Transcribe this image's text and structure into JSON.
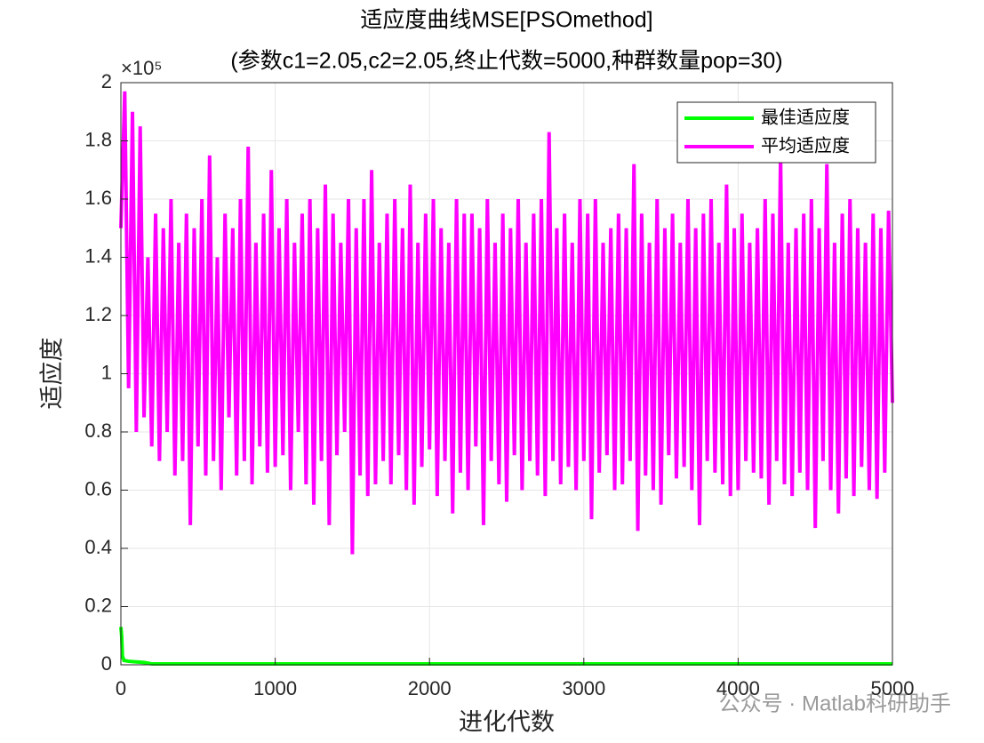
{
  "chart_data": {
    "type": "line",
    "title": "适应度曲线MSE[PSOmethod]",
    "subtitle": "(参数c1=2.05,c2=2.05,终止代数=5000,种群数量pop=30)",
    "xlabel": "进化代数",
    "ylabel": "适应度",
    "y_multiplier": "×10⁵",
    "xlim": [
      0,
      5000
    ],
    "xticks": [
      0,
      1000,
      2000,
      3000,
      4000,
      5000
    ],
    "ylim": [
      0,
      2
    ],
    "yticks": [
      0,
      0.2,
      0.4,
      0.6,
      0.8,
      1,
      1.2,
      1.4,
      1.6,
      1.8,
      2
    ],
    "grid": true,
    "legend_position": "upper-right",
    "series": [
      {
        "name": "最佳适应度",
        "color": "#00ff00",
        "x": [
          0,
          5,
          10,
          20,
          50,
          100,
          150,
          180,
          200,
          1000,
          5000
        ],
        "values": [
          0.13,
          0.1,
          0.03,
          0.015,
          0.012,
          0.01,
          0.008,
          0.005,
          0.003,
          0.003,
          0.003
        ]
      },
      {
        "name": "平均适应度",
        "color": "#ff00ff",
        "x": [
          0,
          25,
          50,
          75,
          100,
          125,
          150,
          175,
          200,
          225,
          250,
          275,
          300,
          325,
          350,
          375,
          400,
          425,
          450,
          475,
          500,
          525,
          550,
          575,
          600,
          625,
          650,
          675,
          700,
          725,
          750,
          775,
          800,
          825,
          850,
          875,
          900,
          925,
          950,
          975,
          1000,
          1025,
          1050,
          1075,
          1100,
          1125,
          1150,
          1175,
          1200,
          1225,
          1250,
          1275,
          1300,
          1325,
          1350,
          1375,
          1400,
          1425,
          1450,
          1475,
          1500,
          1525,
          1550,
          1575,
          1600,
          1625,
          1650,
          1675,
          1700,
          1725,
          1750,
          1775,
          1800,
          1825,
          1850,
          1875,
          1900,
          1925,
          1950,
          1975,
          2000,
          2025,
          2050,
          2075,
          2100,
          2125,
          2150,
          2175,
          2200,
          2225,
          2250,
          2275,
          2300,
          2325,
          2350,
          2375,
          2400,
          2425,
          2450,
          2475,
          2500,
          2525,
          2550,
          2575,
          2600,
          2625,
          2650,
          2675,
          2700,
          2725,
          2750,
          2775,
          2800,
          2825,
          2850,
          2875,
          2900,
          2925,
          2950,
          2975,
          3000,
          3025,
          3050,
          3075,
          3100,
          3125,
          3150,
          3175,
          3200,
          3225,
          3250,
          3275,
          3300,
          3325,
          3350,
          3375,
          3400,
          3425,
          3450,
          3475,
          3500,
          3525,
          3550,
          3575,
          3600,
          3625,
          3650,
          3675,
          3700,
          3725,
          3750,
          3775,
          3800,
          3825,
          3850,
          3875,
          3900,
          3925,
          3950,
          3975,
          4000,
          4025,
          4050,
          4075,
          4100,
          4125,
          4150,
          4175,
          4200,
          4225,
          4250,
          4275,
          4300,
          4325,
          4350,
          4375,
          4400,
          4425,
          4450,
          4475,
          4500,
          4525,
          4550,
          4575,
          4600,
          4625,
          4650,
          4675,
          4700,
          4725,
          4750,
          4775,
          4800,
          4825,
          4850,
          4875,
          4900,
          4925,
          4950,
          4975,
          5000
        ],
        "values": [
          1.5,
          1.97,
          0.95,
          1.9,
          0.8,
          1.85,
          0.85,
          1.4,
          0.75,
          1.55,
          0.7,
          1.5,
          0.8,
          1.6,
          0.65,
          1.45,
          0.7,
          1.55,
          0.48,
          1.5,
          0.75,
          1.6,
          0.65,
          1.75,
          0.7,
          1.4,
          0.6,
          1.55,
          0.85,
          1.5,
          0.65,
          1.6,
          0.7,
          1.78,
          0.62,
          1.45,
          0.75,
          1.55,
          0.66,
          1.7,
          0.68,
          1.5,
          0.72,
          1.6,
          0.6,
          1.45,
          0.8,
          1.55,
          0.62,
          1.6,
          0.55,
          1.5,
          0.7,
          1.65,
          0.48,
          1.55,
          0.72,
          1.45,
          0.8,
          1.6,
          0.38,
          1.5,
          0.65,
          1.6,
          0.58,
          1.7,
          0.62,
          1.45,
          0.7,
          1.55,
          0.62,
          1.6,
          0.72,
          1.5,
          0.6,
          1.65,
          0.55,
          1.45,
          0.68,
          1.55,
          0.74,
          1.6,
          0.58,
          1.5,
          0.7,
          1.45,
          0.52,
          1.6,
          0.66,
          1.55,
          0.6,
          1.55,
          0.75,
          1.5,
          0.48,
          1.6,
          0.7,
          1.45,
          0.62,
          1.55,
          0.56,
          1.5,
          0.72,
          1.6,
          0.6,
          1.45,
          0.7,
          1.55,
          0.65,
          1.6,
          0.58,
          1.83,
          0.7,
          1.5,
          0.62,
          1.55,
          0.68,
          1.45,
          0.6,
          1.6,
          0.7,
          1.55,
          0.5,
          1.6,
          0.66,
          1.45,
          0.72,
          1.5,
          0.6,
          1.55,
          0.62,
          1.5,
          0.7,
          1.72,
          0.46,
          1.55,
          0.65,
          1.45,
          0.6,
          1.6,
          0.55,
          1.5,
          0.72,
          1.55,
          0.64,
          1.45,
          0.68,
          1.6,
          0.6,
          1.5,
          0.48,
          1.55,
          0.7,
          1.6,
          0.66,
          1.45,
          0.62,
          1.65,
          0.58,
          1.5,
          0.6,
          1.55,
          0.7,
          1.45,
          0.66,
          1.5,
          0.64,
          1.6,
          0.55,
          1.55,
          0.7,
          1.75,
          0.62,
          1.45,
          0.58,
          1.5,
          0.66,
          1.55,
          0.6,
          1.6,
          0.47,
          1.5,
          0.7,
          1.72,
          0.6,
          1.45,
          0.52,
          1.55,
          0.64,
          1.6,
          0.58,
          1.5,
          0.68,
          1.45,
          0.6,
          1.55,
          0.57,
          1.5,
          0.66,
          1.56,
          0.9
        ]
      }
    ],
    "watermark": "公众号 · Matlab科研助手"
  }
}
